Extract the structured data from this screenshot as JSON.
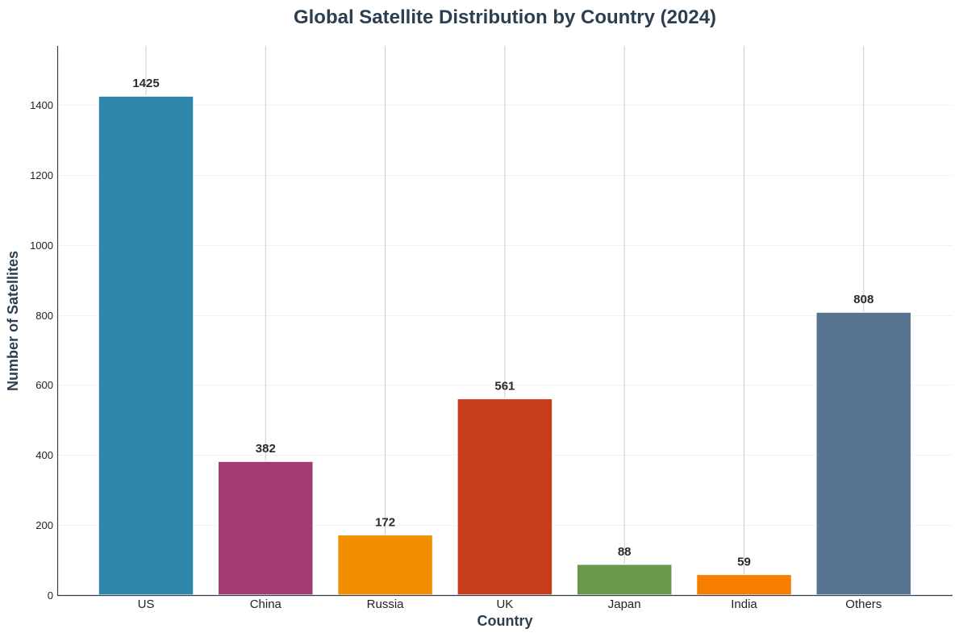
{
  "chart_data": {
    "type": "bar",
    "title": "Global Satellite Distribution by Country (2024)",
    "xlabel": "Country",
    "ylabel": "Number of Satellites",
    "categories": [
      "US",
      "China",
      "Russia",
      "UK",
      "Japan",
      "India",
      "Others"
    ],
    "values": [
      1425,
      382,
      172,
      561,
      88,
      59,
      808
    ],
    "data_labels": [
      "1425",
      "382",
      "172",
      "561",
      "88",
      "59",
      "808"
    ],
    "colors": [
      "#2e86ab",
      "#a23b72",
      "#f18f01",
      "#c73e1d",
      "#6a994e",
      "#f77f00",
      "#577590"
    ],
    "ylim": [
      0,
      1568
    ],
    "yticks": [
      0,
      200,
      400,
      600,
      800,
      1000,
      1200,
      1400
    ],
    "ytick_labels": [
      "0",
      "200",
      "400",
      "600",
      "800",
      "1000",
      "1200",
      "1400"
    ],
    "grid": true,
    "legend": "none"
  },
  "colors": {
    "text": "#2c3e50",
    "axis": "#2c3e50",
    "grid_vertical": "#cccccc",
    "grid_horizontal": "#eeeeee",
    "bar_edge": "#ffffff"
  }
}
